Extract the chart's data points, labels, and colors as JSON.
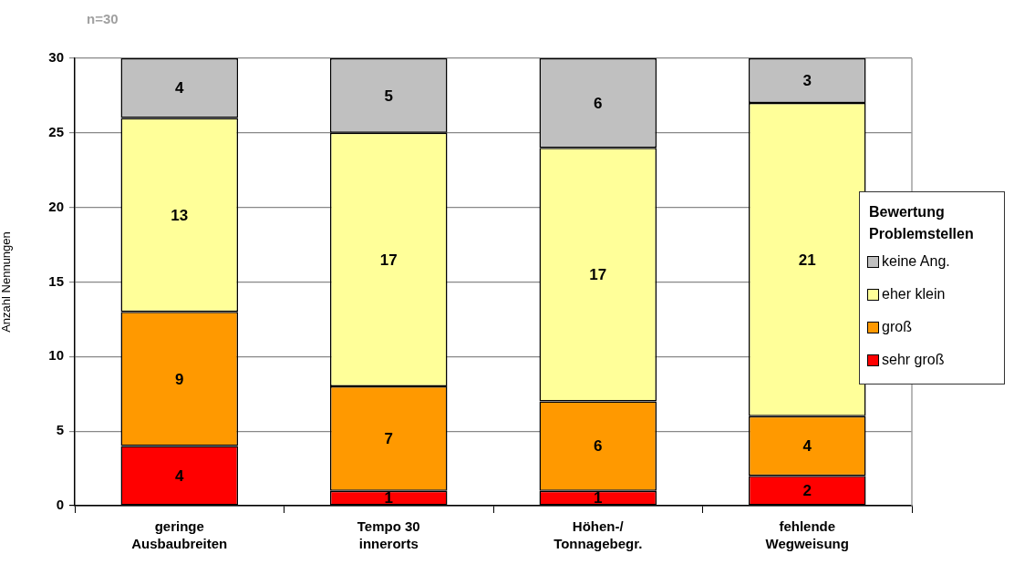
{
  "chart_data": {
    "type": "bar",
    "stacked": true,
    "categories": [
      "geringe\nAusbaubreiten",
      "Tempo 30\ninnerorts",
      "Höhen-/\nTonnagebegr.",
      "fehlende\nWegweisung"
    ],
    "series": [
      {
        "name": "sehr groß",
        "color": "#ff0000",
        "values": [
          4,
          1,
          1,
          2
        ]
      },
      {
        "name": "groß",
        "color": "#ff9900",
        "values": [
          9,
          7,
          6,
          4
        ]
      },
      {
        "name": "eher klein",
        "color": "#ffff99",
        "values": [
          13,
          17,
          17,
          21
        ]
      },
      {
        "name": "keine Ang.",
        "color": "#c0c0c0",
        "values": [
          4,
          5,
          6,
          3
        ]
      }
    ],
    "ylabel": "Anzahl Nennungen",
    "ylim": [
      0,
      30
    ],
    "yticks": [
      0,
      5,
      10,
      15,
      20,
      25,
      30
    ],
    "grid": "y",
    "legend": "right",
    "legend_title": "Bewertung Problemstellen",
    "data_labels": true,
    "annotations": [
      "n=30"
    ]
  }
}
